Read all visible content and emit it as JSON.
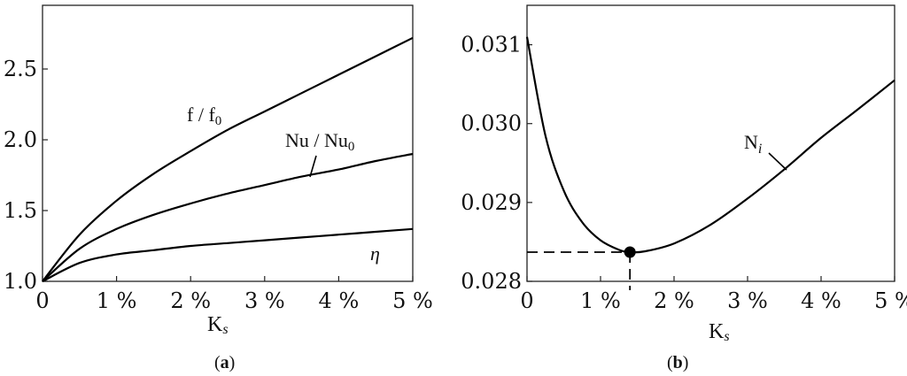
{
  "chart_data": [
    {
      "type": "line",
      "panel_label": "(a)",
      "xlabel": "Ks",
      "ylabel": "",
      "xlim": [
        0,
        5
      ],
      "ylim": [
        1.0,
        2.95
      ],
      "x_ticks": [
        0,
        1,
        2,
        3,
        4,
        5
      ],
      "x_tick_labels": [
        "0",
        "1 %",
        "2 %",
        "3 %",
        "4 %",
        "5 %"
      ],
      "y_ticks": [
        1.0,
        1.5,
        2.0,
        2.5
      ],
      "y_tick_labels": [
        "1.0",
        "1.5",
        "2.0",
        "2.5"
      ],
      "x": [
        0,
        0.5,
        1,
        1.5,
        2,
        2.5,
        3,
        3.5,
        4,
        4.5,
        5
      ],
      "series": [
        {
          "name": "f / f0",
          "values": [
            1.0,
            1.33,
            1.57,
            1.76,
            1.92,
            2.07,
            2.2,
            2.33,
            2.46,
            2.59,
            2.72
          ]
        },
        {
          "name": "Nu / Nu0",
          "values": [
            1.0,
            1.23,
            1.37,
            1.47,
            1.55,
            1.62,
            1.68,
            1.74,
            1.79,
            1.85,
            1.9
          ]
        },
        {
          "name": "η",
          "values": [
            1.0,
            1.13,
            1.19,
            1.22,
            1.25,
            1.27,
            1.29,
            1.31,
            1.33,
            1.35,
            1.37
          ]
        }
      ],
      "grid": false,
      "legend": "none"
    },
    {
      "type": "line",
      "panel_label": "(b)",
      "xlabel": "Ks",
      "ylabel": "",
      "xlim": [
        0,
        5
      ],
      "ylim": [
        0.028,
        0.0315
      ],
      "x_ticks": [
        0,
        1,
        2,
        3,
        4,
        5
      ],
      "x_tick_labels": [
        "0",
        "1 %",
        "2 %",
        "3 %",
        "4 %",
        "5 %"
      ],
      "y_ticks": [
        0.028,
        0.029,
        0.03,
        0.031
      ],
      "y_tick_labels": [
        "0.028",
        "0.029",
        "0.030",
        "0.031"
      ],
      "x": [
        0,
        0.25,
        0.5,
        0.75,
        1,
        1.25,
        1.4,
        1.6,
        2,
        2.5,
        3,
        3.5,
        4,
        4.5,
        5
      ],
      "series": [
        {
          "name": "Ni",
          "values": [
            0.0311,
            0.02985,
            0.02915,
            0.02875,
            0.02852,
            0.0284,
            0.02837,
            0.02838,
            0.02848,
            0.02872,
            0.02905,
            0.02942,
            0.02982,
            0.03018,
            0.03055
          ]
        }
      ],
      "minimum_point": {
        "x": 1.4,
        "y": 0.02837
      },
      "grid": false,
      "legend": "none"
    }
  ]
}
